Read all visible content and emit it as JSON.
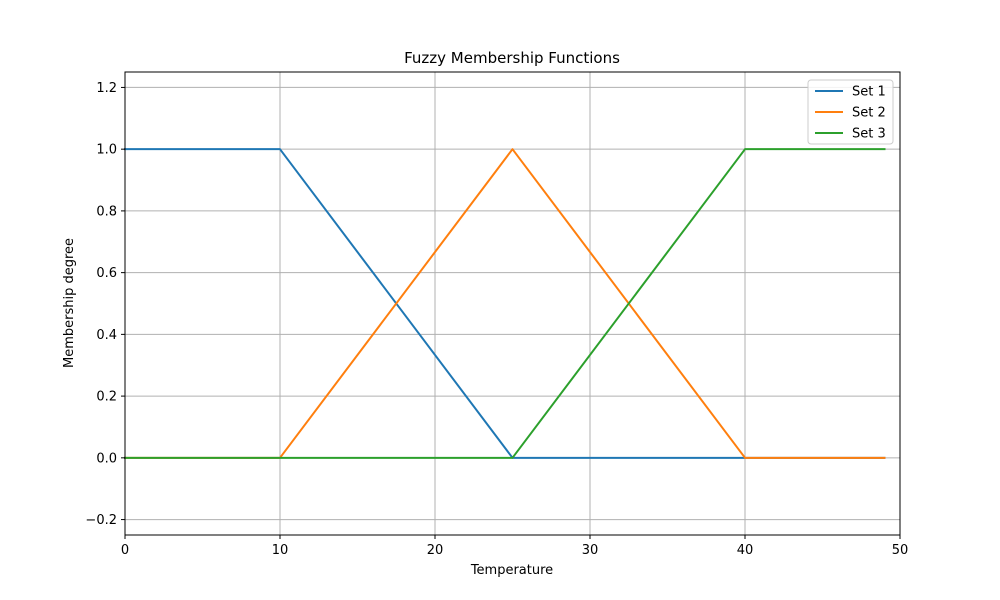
{
  "chart_data": {
    "type": "line",
    "title": "Fuzzy Membership Functions",
    "xlabel": "Temperature",
    "ylabel": "Membership degree",
    "xlim": [
      0,
      50
    ],
    "ylim": [
      -0.25,
      1.25
    ],
    "xticks": [
      0,
      10,
      20,
      30,
      40,
      50
    ],
    "xtick_labels": [
      "0",
      "10",
      "20",
      "30",
      "40",
      "50"
    ],
    "yticks": [
      -0.2,
      0.0,
      0.2,
      0.4,
      0.6,
      0.8,
      1.0,
      1.2
    ],
    "ytick_labels": [
      "−0.2",
      "0.0",
      "0.2",
      "0.4",
      "0.6",
      "0.8",
      "1.0",
      "1.2"
    ],
    "grid": true,
    "legend_position": "top-right",
    "series": [
      {
        "name": "Set 1",
        "color": "#1f77b4",
        "x": [
          0,
          10,
          25,
          40,
          49
        ],
        "y": [
          1,
          1,
          0,
          0,
          0
        ]
      },
      {
        "name": "Set 2",
        "color": "#ff7f0e",
        "x": [
          0,
          10,
          25,
          40,
          49
        ],
        "y": [
          0,
          0,
          1,
          0,
          0
        ]
      },
      {
        "name": "Set 3",
        "color": "#2ca02c",
        "x": [
          0,
          10,
          25,
          40,
          49
        ],
        "y": [
          0,
          0,
          0,
          1,
          1
        ]
      }
    ]
  }
}
